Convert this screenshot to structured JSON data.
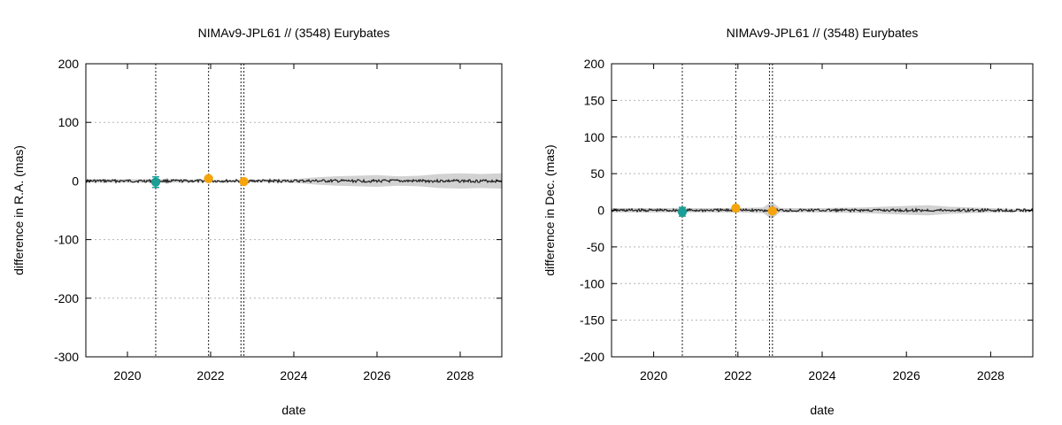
{
  "chart_data": [
    {
      "type": "scatter",
      "title": "NIMAv9-JPL61 // (3548) Eurybates",
      "xlabel": "date",
      "ylabel": "difference in R.A. (mas)",
      "xlim": [
        2019.0,
        2029.0
      ],
      "ylim": [
        -300,
        200
      ],
      "xticks": [
        2020,
        2022,
        2024,
        2026,
        2028
      ],
      "yticks": [
        -300,
        -200,
        -100,
        0,
        100,
        200
      ],
      "grid": "horizontal-dotted",
      "vertical_markers": [
        2020.68,
        2021.95,
        2022.73,
        2022.8
      ],
      "uncertainty_band": {
        "x": [
          2019.0,
          2020.0,
          2021.0,
          2022.0,
          2023.0,
          2023.5,
          2024.0,
          2024.5,
          2025.0,
          2025.5,
          2026.0,
          2026.5,
          2027.0,
          2027.5,
          2028.0,
          2028.5,
          2029.0
        ],
        "half_width": [
          3,
          3,
          3,
          2,
          2,
          3,
          3,
          6,
          8,
          9,
          10,
          8,
          9,
          12,
          13,
          12,
          13
        ]
      },
      "series": [
        {
          "name": "",
          "color": "#1a9e96",
          "points": [
            {
              "x": 2020.68,
              "y": -2,
              "err": 9
            }
          ]
        },
        {
          "name": "",
          "color": "#f5a40c",
          "points": [
            {
              "x": 2021.95,
              "y": 4,
              "err": 2
            },
            {
              "x": 2022.8,
              "y": -1,
              "err": 2
            }
          ]
        }
      ]
    },
    {
      "type": "scatter",
      "title": "NIMAv9-JPL61 // (3548) Eurybates",
      "xlabel": "date",
      "ylabel": "difference in Dec. (mas)",
      "xlim": [
        2019.0,
        2029.0
      ],
      "ylim": [
        -200,
        200
      ],
      "xticks": [
        2020,
        2022,
        2024,
        2026,
        2028
      ],
      "yticks": [
        -200,
        -150,
        -100,
        -50,
        0,
        50,
        100,
        150,
        200
      ],
      "grid": "horizontal-dotted",
      "vertical_markers": [
        2020.68,
        2021.95,
        2022.75,
        2022.82
      ],
      "uncertainty_band": {
        "x": [
          2019.0,
          2020.0,
          2021.0,
          2022.0,
          2022.6,
          2022.8,
          2023.0,
          2024.0,
          2025.0,
          2025.5,
          2026.0,
          2026.5,
          2027.0,
          2027.5,
          2028.0,
          2028.5,
          2029.0
        ],
        "half_width": [
          3,
          3,
          3,
          3,
          4,
          12,
          3,
          3,
          4,
          5,
          6,
          7,
          5,
          4,
          3,
          2,
          2
        ]
      },
      "series": [
        {
          "name": "",
          "color": "#1a9e96",
          "points": [
            {
              "x": 2020.68,
              "y": -2,
              "err": 6
            }
          ]
        },
        {
          "name": "",
          "color": "#f5a40c",
          "points": [
            {
              "x": 2021.95,
              "y": 3,
              "err": 2
            },
            {
              "x": 2022.82,
              "y": -1,
              "err": 2
            }
          ]
        }
      ]
    }
  ]
}
